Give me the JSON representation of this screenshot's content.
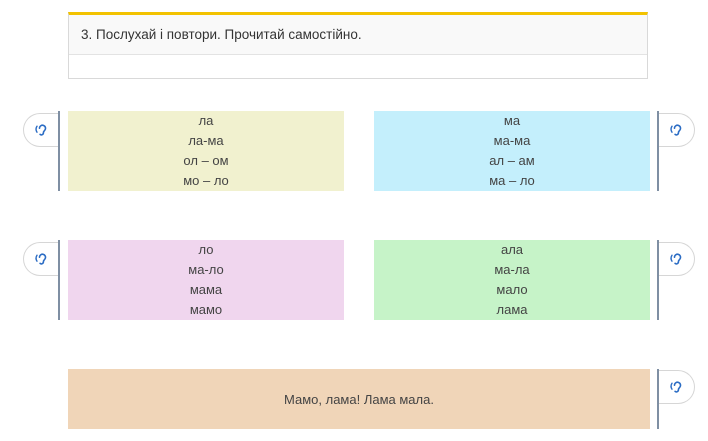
{
  "task": {
    "title": "3. Послухай і повтори. Прочитай самостійно."
  },
  "colors": {
    "accent": "#f2c200",
    "block_1": "#f1f1cf",
    "block_2": "#c4effc",
    "block_3": "#f0d6ee",
    "block_4": "#c6f3c8",
    "sentence_block": "#f0d5b8",
    "audio_icon": "#2b6cc4"
  },
  "blocks": [
    {
      "lines": [
        "ла",
        "ла-ма",
        "ол – ом",
        "мо – ло"
      ]
    },
    {
      "lines": [
        "ма",
        "ма-ма",
        "ал – ам",
        "ма – ло"
      ]
    },
    {
      "lines": [
        "ло",
        "ма-ло",
        "мама",
        "мамо"
      ]
    },
    {
      "lines": [
        "ала",
        "ма-ла",
        "мало",
        "лама"
      ]
    }
  ],
  "sentence": {
    "text": "Мамо, лама! Лама мала."
  },
  "icons": {
    "audio": "ear-listen-icon"
  }
}
